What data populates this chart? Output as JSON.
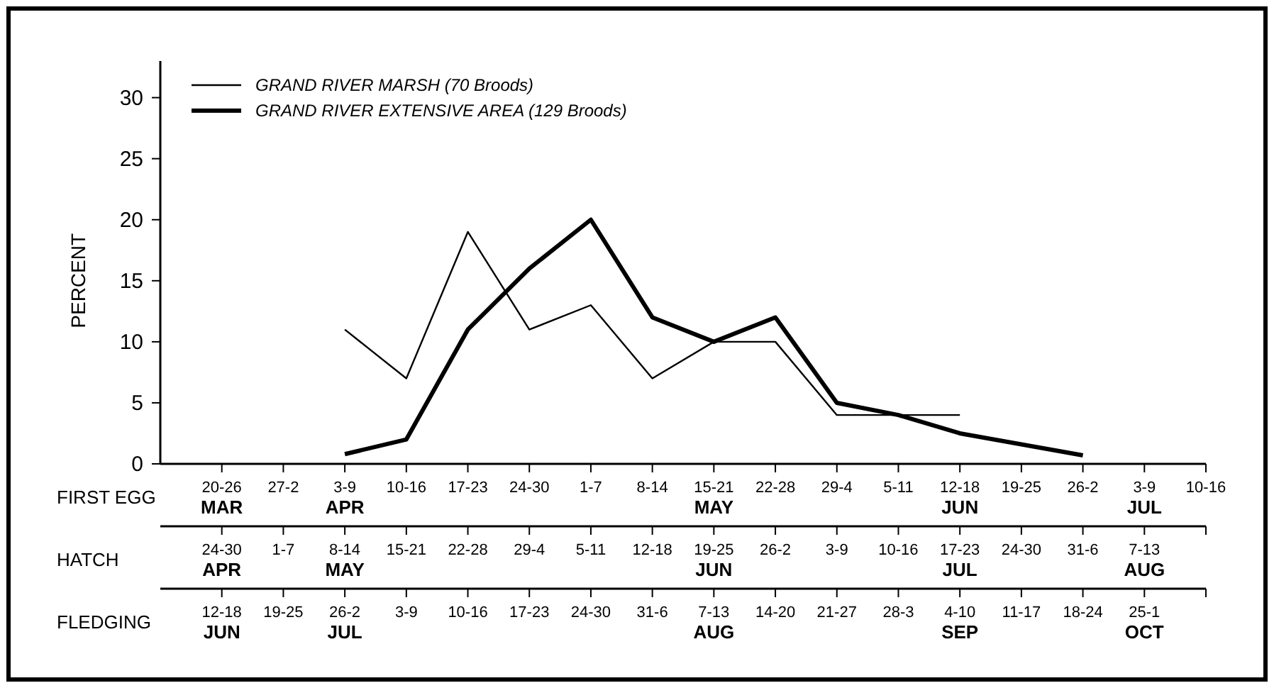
{
  "chart_data": {
    "type": "line",
    "ylabel": "PERCENT",
    "xlabel": "FIRST EGG",
    "categories": [
      "20-26\nMAR",
      "27-2",
      "3-9\nAPR",
      "10-16",
      "17-23",
      "24-30",
      "1-7",
      "8-14",
      "15-21\nMAY",
      "22-28",
      "29-4",
      "5-11",
      "12-18\nJUN",
      "19-25",
      "26-2",
      "3-9\nJUL",
      "10-16"
    ],
    "ylim": [
      0,
      33
    ],
    "yticks": [
      0,
      5,
      10,
      15,
      20,
      25,
      30
    ],
    "grid": false,
    "legend": "top left",
    "series": [
      {
        "name": "GRAND RIVER MARSH (70 Broods)",
        "color": "#000000",
        "values": [
          null,
          null,
          11,
          7,
          19,
          11,
          13,
          7,
          10,
          10,
          4,
          4,
          4,
          null,
          null,
          null,
          null
        ]
      },
      {
        "name": "GRAND RIVER EXTENSIVE AREA (129 Broods)",
        "color": "#000000",
        "values": [
          null,
          null,
          0.8,
          2,
          11,
          16,
          20,
          12,
          10,
          12,
          5,
          4,
          2.5,
          1.6,
          0.7,
          null,
          null
        ]
      }
    ],
    "annotations": [
      "HATCH",
      "24-30\nAPR",
      "1-7",
      "8-14\nMAY",
      "15-21",
      "22-28",
      "29-4",
      "5-11",
      "12-18",
      "19-25\nJUN",
      "26-2",
      "3-9",
      "10-16",
      "17-23\nJUL",
      "24-30",
      "31-6",
      "7-13\nAUG",
      "FLEDGING",
      "12-18\nJUN",
      "19-25",
      "26-2\nJUL",
      "3-9",
      "10-16",
      "17-23",
      "24-30",
      "31-6",
      "7-13\nAUG",
      "14-20",
      "21-27",
      "28-3",
      "4-10\nSEP",
      "11-17",
      "18-24",
      "25-1\nOCT"
    ]
  }
}
